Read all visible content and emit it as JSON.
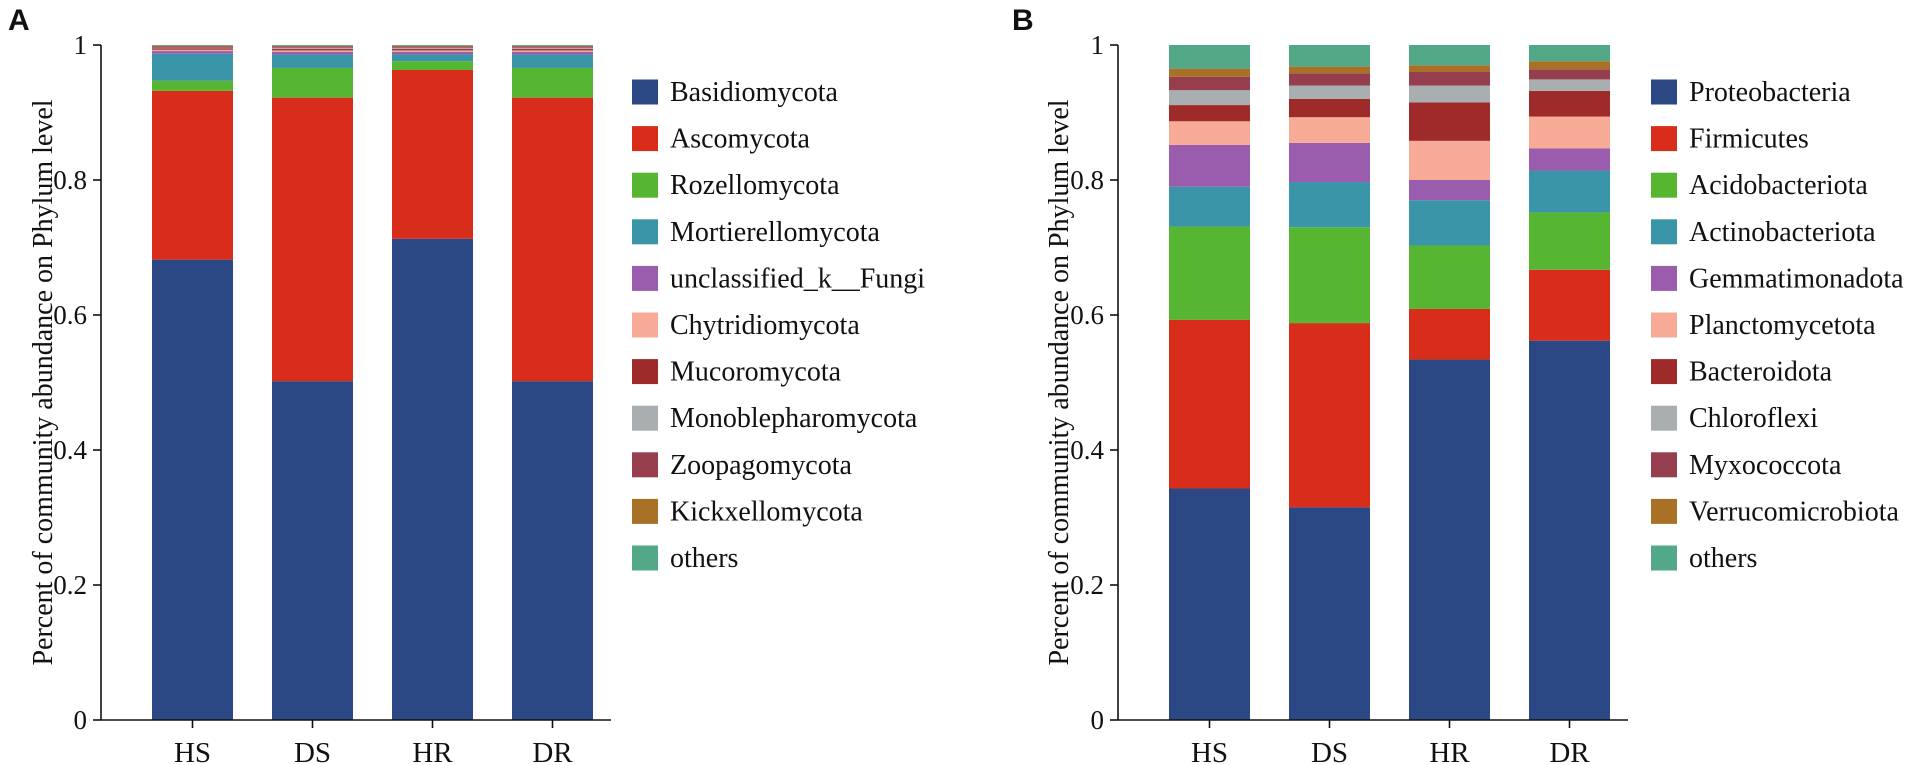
{
  "chart_data": [
    {
      "type": "bar",
      "stacked": true,
      "panel_label": "A",
      "title": "",
      "xlabel": "",
      "ylabel": "Percent of community abundance on Phylum level",
      "ylim": [
        0,
        1
      ],
      "yticks": [
        "0",
        "0.2",
        "0.4",
        "0.6",
        "0.8",
        "1"
      ],
      "categories": [
        "HS",
        "DS",
        "HR",
        "DR"
      ],
      "legend_position": "right",
      "series": [
        {
          "name": "Basidiomycota",
          "color": "#2B4784",
          "values": [
            0.682,
            0.502,
            0.713,
            0.502
          ]
        },
        {
          "name": "Ascomycota",
          "color": "#D92D1B",
          "values": [
            0.25,
            0.42,
            0.25,
            0.42
          ]
        },
        {
          "name": "Rozellomycota",
          "color": "#56B531",
          "values": [
            0.015,
            0.044,
            0.013,
            0.044
          ]
        },
        {
          "name": "Mortierellomycota",
          "color": "#3A95A8",
          "values": [
            0.04,
            0.02,
            0.01,
            0.02
          ]
        },
        {
          "name": "unclassified_k__Fungi",
          "color": "#9A5DAD",
          "values": [
            0.004,
            0.004,
            0.004,
            0.004
          ]
        },
        {
          "name": "Chytridiomycota",
          "color": "#F7AA95",
          "values": [
            0.002,
            0.002,
            0.002,
            0.002
          ]
        },
        {
          "name": "Mucoromycota",
          "color": "#9E2A2A",
          "values": [
            0.002,
            0.002,
            0.002,
            0.002
          ]
        },
        {
          "name": "Monoblepharomycota",
          "color": "#A9AFB0",
          "values": [
            0.001,
            0.002,
            0.002,
            0.002
          ]
        },
        {
          "name": "Zoopagomycota",
          "color": "#963D4E",
          "values": [
            0.002,
            0.002,
            0.002,
            0.002
          ]
        },
        {
          "name": "Kickxellomycota",
          "color": "#A97126",
          "values": [
            0.001,
            0.001,
            0.001,
            0.001
          ]
        },
        {
          "name": "others",
          "color": "#53A987",
          "values": [
            0.001,
            0.001,
            0.001,
            0.001
          ]
        }
      ]
    },
    {
      "type": "bar",
      "stacked": true,
      "panel_label": "B",
      "title": "",
      "xlabel": "",
      "ylabel": "Percent of community abundance on Phylum level",
      "ylim": [
        0,
        1
      ],
      "yticks": [
        "0",
        "0.2",
        "0.4",
        "0.6",
        "0.8",
        "1"
      ],
      "categories": [
        "HS",
        "DS",
        "HR",
        "DR"
      ],
      "legend_position": "right",
      "series": [
        {
          "name": "Proteobacteria",
          "color": "#2B4784",
          "values": [
            0.343,
            0.315,
            0.534,
            0.562
          ]
        },
        {
          "name": "Firmicutes",
          "color": "#D92D1B",
          "values": [
            0.25,
            0.273,
            0.075,
            0.105
          ]
        },
        {
          "name": "Acidobacteriota",
          "color": "#56B531",
          "values": [
            0.138,
            0.142,
            0.094,
            0.085
          ]
        },
        {
          "name": "Actinobacteriota",
          "color": "#3A95A8",
          "values": [
            0.059,
            0.067,
            0.067,
            0.062
          ]
        },
        {
          "name": "Gemmatimonadota",
          "color": "#9A5DAD",
          "values": [
            0.062,
            0.058,
            0.03,
            0.033
          ]
        },
        {
          "name": "Planctomycetota",
          "color": "#F7AA95",
          "values": [
            0.035,
            0.038,
            0.058,
            0.047
          ]
        },
        {
          "name": "Bacteroidota",
          "color": "#9E2A2A",
          "values": [
            0.024,
            0.027,
            0.057,
            0.038
          ]
        },
        {
          "name": "Chloroflexi",
          "color": "#A9AFB0",
          "values": [
            0.022,
            0.02,
            0.025,
            0.017
          ]
        },
        {
          "name": "Myxococcota",
          "color": "#963D4E",
          "values": [
            0.02,
            0.018,
            0.02,
            0.015
          ]
        },
        {
          "name": "Verrucomicrobiota",
          "color": "#A97126",
          "values": [
            0.012,
            0.01,
            0.01,
            0.012
          ]
        },
        {
          "name": "others",
          "color": "#53A987",
          "values": [
            0.035,
            0.032,
            0.03,
            0.024
          ]
        }
      ]
    }
  ]
}
